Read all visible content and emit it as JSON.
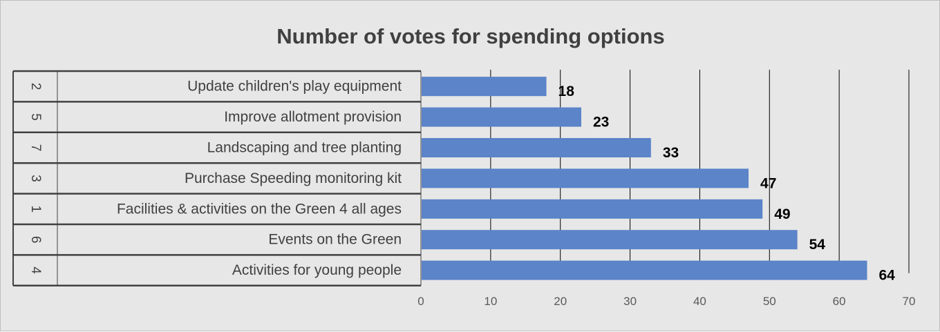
{
  "chart_data": {
    "type": "bar",
    "orientation": "horizontal",
    "title": "Number of votes for spending options",
    "categories": [
      "Update children's play equipment",
      "Improve allotment provision",
      "Landscaping and tree planting",
      "Purchase Speeding monitoring kit",
      "Facilities & activities on the Green 4 all ages",
      "Events on the Green",
      "Activities for young people"
    ],
    "category_codes": [
      "2",
      "5",
      "7",
      "3",
      "1",
      "6",
      "4"
    ],
    "values": [
      18,
      23,
      33,
      47,
      49,
      54,
      64
    ],
    "xlim": [
      0,
      70
    ],
    "xticks": [
      0,
      10,
      20,
      30,
      40,
      50,
      60,
      70
    ],
    "grid": true,
    "data_labels": true,
    "colors": {
      "bar": "#5b84c9",
      "background": "#e7e7e7",
      "gridline": "#000000",
      "table_lines": "#404040"
    }
  }
}
